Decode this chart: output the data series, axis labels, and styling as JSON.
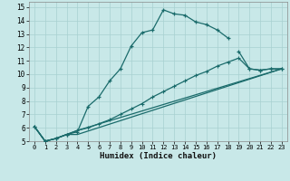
{
  "xlabel": "Humidex (Indice chaleur)",
  "bg_color": "#c8e8e8",
  "grid_color": "#a8d0d0",
  "line_color": "#1a6b6b",
  "xlim": [
    -0.5,
    23.5
  ],
  "ylim": [
    5,
    15.4
  ],
  "xticks": [
    0,
    1,
    2,
    3,
    4,
    5,
    6,
    7,
    8,
    9,
    10,
    11,
    12,
    13,
    14,
    15,
    16,
    17,
    18,
    19,
    20,
    21,
    22,
    23
  ],
  "yticks": [
    5,
    6,
    7,
    8,
    9,
    10,
    11,
    12,
    13,
    14,
    15
  ],
  "series": [
    {
      "x": [
        0,
        1,
        2,
        3,
        4,
        5,
        6,
        7,
        8,
        9,
        10,
        11,
        12,
        13,
        14,
        15,
        16,
        17,
        18
      ],
      "y": [
        6.1,
        5.0,
        5.2,
        5.5,
        5.7,
        7.6,
        8.3,
        9.5,
        10.4,
        12.1,
        13.1,
        13.3,
        14.8,
        14.5,
        14.4,
        13.9,
        13.7,
        13.3,
        12.7
      ],
      "markers": true
    },
    {
      "x": [
        19,
        20,
        21,
        22,
        23
      ],
      "y": [
        11.7,
        10.4,
        10.3,
        10.4,
        10.4
      ],
      "markers": true
    },
    {
      "x": [
        0,
        1,
        2,
        3,
        4,
        5,
        6,
        7,
        8,
        9,
        10,
        11,
        12,
        13,
        14,
        15,
        16,
        17,
        18,
        19,
        20,
        21,
        22,
        23
      ],
      "y": [
        6.1,
        5.0,
        5.2,
        5.5,
        5.8,
        6.0,
        6.3,
        6.6,
        7.0,
        7.4,
        7.8,
        8.3,
        8.7,
        9.1,
        9.5,
        9.9,
        10.2,
        10.6,
        10.9,
        11.2,
        10.4,
        10.3,
        10.4,
        10.4
      ],
      "markers": true
    },
    {
      "x": [
        0,
        1,
        2,
        3,
        4,
        23
      ],
      "y": [
        6.1,
        5.0,
        5.2,
        5.5,
        5.5,
        10.4
      ],
      "markers": false
    },
    {
      "x": [
        0,
        1,
        2,
        3,
        4,
        23
      ],
      "y": [
        6.1,
        5.0,
        5.2,
        5.5,
        5.8,
        10.4
      ],
      "markers": false
    }
  ]
}
